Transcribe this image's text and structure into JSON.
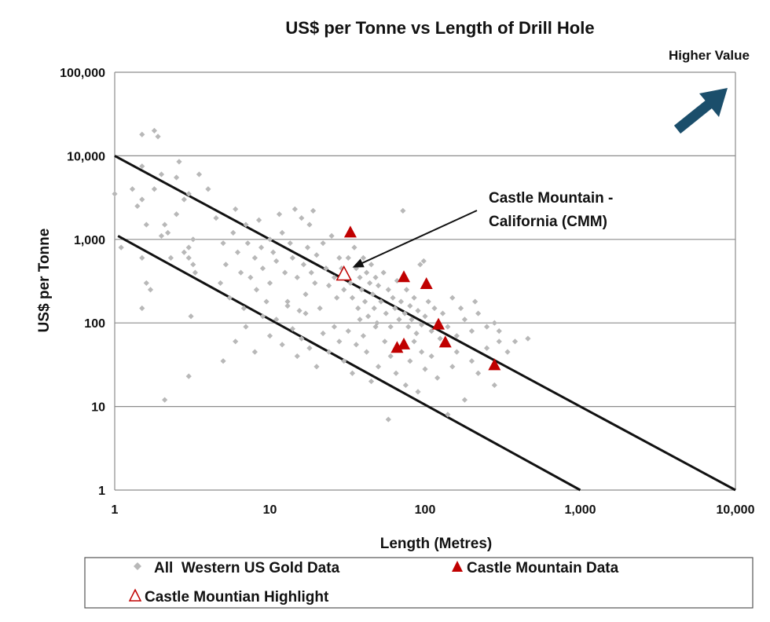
{
  "chart_data": {
    "type": "scatter",
    "title": "US$ per Tonne vs Length of Drill Hole",
    "xlabel": "Length (Metres)",
    "ylabel": "US$ per Tonne",
    "x_scale": "log",
    "y_scale": "log",
    "xlim": [
      1,
      10000
    ],
    "ylim": [
      1,
      100000
    ],
    "x_ticks": [
      {
        "value": 1,
        "label": "1"
      },
      {
        "value": 10,
        "label": "10"
      },
      {
        "value": 100,
        "label": "100"
      },
      {
        "value": 1000,
        "label": "1,000"
      },
      {
        "value": 10000,
        "label": "10,000"
      }
    ],
    "y_ticks": [
      {
        "value": 1,
        "label": "1"
      },
      {
        "value": 10,
        "label": "10"
      },
      {
        "value": 100,
        "label": "100"
      },
      {
        "value": 1000,
        "label": "1,000"
      },
      {
        "value": 10000,
        "label": "10,000"
      },
      {
        "value": 100000,
        "label": "100,000"
      }
    ],
    "grid": "horizontal major gridlines",
    "legend_position": "bottom",
    "corner_label": "Higher Value",
    "annotation": {
      "text_lines": [
        "Castle Mountain -",
        "California (CMM)"
      ],
      "x": 30,
      "y": 380
    },
    "reference_lines": [
      {
        "points": [
          [
            1,
            10000
          ],
          [
            10000,
            1
          ]
        ]
      },
      {
        "points": [
          [
            1.05,
            1100
          ],
          [
            1000,
            1
          ]
        ]
      }
    ],
    "series": [
      {
        "name": "All  Western US Gold Data",
        "marker": "diamond",
        "color": "#b8b8b8",
        "points": [
          [
            1.0,
            3500
          ],
          [
            1.1,
            800
          ],
          [
            1.3,
            4000
          ],
          [
            1.4,
            2500
          ],
          [
            1.5,
            7500
          ],
          [
            1.5,
            18000
          ],
          [
            1.5,
            3000
          ],
          [
            1.6,
            1500
          ],
          [
            1.5,
            600
          ],
          [
            1.6,
            300
          ],
          [
            1.5,
            150
          ],
          [
            1.7,
            250
          ],
          [
            1.8,
            20000
          ],
          [
            1.9,
            17000
          ],
          [
            1.8,
            4000
          ],
          [
            2.0,
            6000
          ],
          [
            2.0,
            1100
          ],
          [
            2.1,
            1500
          ],
          [
            2.2,
            1200
          ],
          [
            2.3,
            600
          ],
          [
            2.5,
            5500
          ],
          [
            2.5,
            2000
          ],
          [
            2.6,
            8500
          ],
          [
            2.8,
            3000
          ],
          [
            3.0,
            800
          ],
          [
            3.0,
            600
          ],
          [
            3.2,
            1000
          ],
          [
            3.2,
            500
          ],
          [
            3.0,
            3500
          ],
          [
            3.5,
            6000
          ],
          [
            3.3,
            400
          ],
          [
            3.1,
            120
          ],
          [
            2.8,
            700
          ],
          [
            3.0,
            23
          ],
          [
            2.1,
            12
          ],
          [
            4.0,
            4000
          ],
          [
            4.5,
            1800
          ],
          [
            4.8,
            300
          ],
          [
            5.0,
            900
          ],
          [
            5.2,
            500
          ],
          [
            5.5,
            200
          ],
          [
            5.8,
            1200
          ],
          [
            6.0,
            2300
          ],
          [
            6.2,
            700
          ],
          [
            6.5,
            400
          ],
          [
            6.8,
            150
          ],
          [
            7.0,
            1500
          ],
          [
            7.2,
            900
          ],
          [
            7.5,
            350
          ],
          [
            8.0,
            600
          ],
          [
            8.2,
            250
          ],
          [
            8.5,
            1700
          ],
          [
            8.8,
            800
          ],
          [
            9.0,
            450
          ],
          [
            9.5,
            180
          ],
          [
            10,
            1000
          ],
          [
            10,
            300
          ],
          [
            10.5,
            700
          ],
          [
            11,
            550
          ],
          [
            11.5,
            2000
          ],
          [
            12,
            1200
          ],
          [
            12.5,
            400
          ],
          [
            13,
            180
          ],
          [
            13.5,
            900
          ],
          [
            14,
            600
          ],
          [
            14.5,
            2300
          ],
          [
            15,
            350
          ],
          [
            15.5,
            140
          ],
          [
            16,
            1800
          ],
          [
            16.5,
            500
          ],
          [
            17,
            220
          ],
          [
            17.5,
            800
          ],
          [
            18,
            1500
          ],
          [
            18.5,
            400
          ],
          [
            19,
            2200
          ],
          [
            19.5,
            300
          ],
          [
            20,
            650
          ],
          [
            21,
            150
          ],
          [
            22,
            900
          ],
          [
            23,
            450
          ],
          [
            24,
            280
          ],
          [
            25,
            1100
          ],
          [
            26,
            350
          ],
          [
            27,
            200
          ],
          [
            28,
            600
          ],
          [
            29,
            450
          ],
          [
            30,
            250
          ],
          [
            5.0,
            35
          ],
          [
            6.0,
            60
          ],
          [
            7.0,
            90
          ],
          [
            8.0,
            45
          ],
          [
            9.0,
            120
          ],
          [
            10,
            70
          ],
          [
            11,
            110
          ],
          [
            12,
            55
          ],
          [
            13,
            160
          ],
          [
            14,
            85
          ],
          [
            15,
            40
          ],
          [
            16,
            65
          ],
          [
            17,
            130
          ],
          [
            18,
            50
          ],
          [
            20,
            30
          ],
          [
            22,
            75
          ],
          [
            24,
            45
          ],
          [
            26,
            90
          ],
          [
            28,
            60
          ],
          [
            30,
            35
          ],
          [
            32,
            80
          ],
          [
            34,
            25
          ],
          [
            36,
            55
          ],
          [
            38,
            110
          ],
          [
            40,
            70
          ],
          [
            42,
            45
          ],
          [
            45,
            20
          ],
          [
            48,
            90
          ],
          [
            50,
            30
          ],
          [
            55,
            60
          ],
          [
            58,
            7
          ],
          [
            60,
            40
          ],
          [
            65,
            25
          ],
          [
            70,
            50
          ],
          [
            75,
            18
          ],
          [
            80,
            35
          ],
          [
            85,
            60
          ],
          [
            90,
            15
          ],
          [
            95,
            45
          ],
          [
            100,
            28
          ],
          [
            110,
            40
          ],
          [
            120,
            22
          ],
          [
            130,
            55
          ],
          [
            140,
            8
          ],
          [
            150,
            30
          ],
          [
            160,
            45
          ],
          [
            180,
            12
          ],
          [
            200,
            35
          ],
          [
            220,
            25
          ],
          [
            250,
            50
          ],
          [
            280,
            18
          ],
          [
            300,
            60
          ],
          [
            340,
            45
          ],
          [
            380,
            60
          ],
          [
            460,
            65
          ],
          [
            32,
            600
          ],
          [
            33,
            300
          ],
          [
            34,
            200
          ],
          [
            35,
            800
          ],
          [
            36,
            450
          ],
          [
            37,
            150
          ],
          [
            38,
            350
          ],
          [
            39,
            250
          ],
          [
            40,
            600
          ],
          [
            41,
            180
          ],
          [
            42,
            400
          ],
          [
            43,
            120
          ],
          [
            44,
            300
          ],
          [
            45,
            500
          ],
          [
            46,
            220
          ],
          [
            47,
            150
          ],
          [
            48,
            350
          ],
          [
            49,
            100
          ],
          [
            50,
            280
          ],
          [
            52,
            180
          ],
          [
            54,
            400
          ],
          [
            56,
            130
          ],
          [
            58,
            250
          ],
          [
            60,
            90
          ],
          [
            62,
            200
          ],
          [
            64,
            150
          ],
          [
            66,
            320
          ],
          [
            68,
            110
          ],
          [
            70,
            180
          ],
          [
            72,
            2200
          ],
          [
            74,
            130
          ],
          [
            76,
            250
          ],
          [
            78,
            90
          ],
          [
            80,
            160
          ],
          [
            82,
            110
          ],
          [
            85,
            200
          ],
          [
            88,
            75
          ],
          [
            90,
            140
          ],
          [
            93,
            500
          ],
          [
            95,
            95
          ],
          [
            98,
            550
          ],
          [
            100,
            120
          ],
          [
            105,
            180
          ],
          [
            110,
            80
          ],
          [
            115,
            150
          ],
          [
            120,
            100
          ],
          [
            125,
            65
          ],
          [
            130,
            130
          ],
          [
            140,
            90
          ],
          [
            150,
            200
          ],
          [
            160,
            70
          ],
          [
            170,
            150
          ],
          [
            180,
            110
          ],
          [
            200,
            80
          ],
          [
            210,
            180
          ],
          [
            220,
            130
          ],
          [
            250,
            90
          ],
          [
            280,
            100
          ],
          [
            300,
            80
          ]
        ]
      },
      {
        "name": "Castle Mountain Data",
        "marker": "triangle",
        "color": "#c00000",
        "points": [
          [
            33,
            1200
          ],
          [
            73,
            350
          ],
          [
            102,
            290
          ],
          [
            122,
            95
          ],
          [
            135,
            58
          ],
          [
            73,
            55
          ],
          [
            66,
            50
          ],
          [
            280,
            31
          ]
        ]
      },
      {
        "name": "Castle Mountian Highlight",
        "marker": "triangle-open",
        "color": "#c00000",
        "points": [
          [
            30,
            380
          ]
        ]
      }
    ]
  }
}
